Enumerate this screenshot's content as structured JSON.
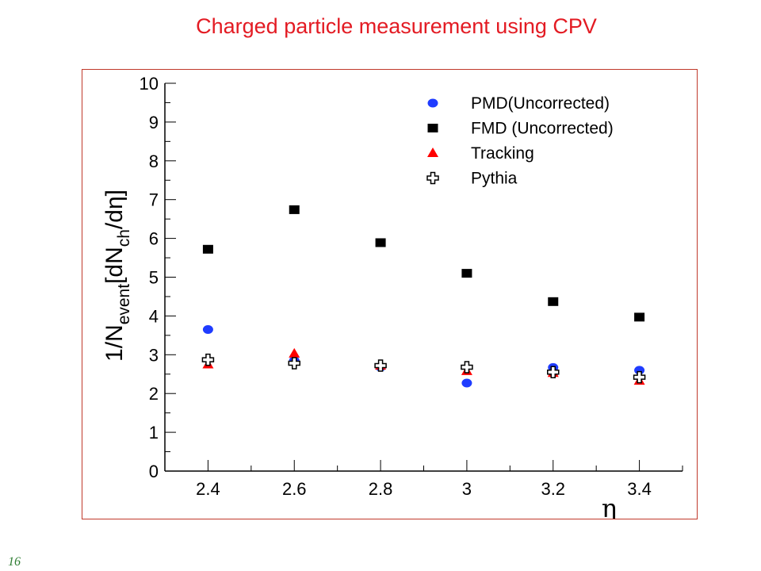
{
  "slide": {
    "title": "Charged particle measurement using CPV",
    "page_number": "16"
  },
  "colors": {
    "title": "#e31b23",
    "frame_border": "#c0392b",
    "pmd": "#1f3cff",
    "fmd": "#000000",
    "tracking": "#ff0000",
    "pythia": "#000000",
    "page_number": "#2e7d32"
  },
  "chart_data": {
    "type": "scatter",
    "title": "",
    "xlabel": "η",
    "ylabel": "1/N_event[dN_ch/dη]",
    "xlim": [
      2.3,
      3.5
    ],
    "ylim": [
      0,
      10
    ],
    "x_ticks": [
      "2.4",
      "2.6",
      "2.8",
      "3",
      "3.2",
      "3.4"
    ],
    "y_ticks": [
      "0",
      "1",
      "2",
      "3",
      "4",
      "5",
      "6",
      "7",
      "8",
      "9",
      "10"
    ],
    "grid": false,
    "legend_position": "top-right",
    "series": [
      {
        "name": "PMD(Uncorrected)",
        "marker": "circle",
        "color": "#1f3cff",
        "x": [
          2.4,
          2.6,
          2.8,
          3.0,
          3.2,
          3.4
        ],
        "y": [
          3.65,
          2.85,
          2.68,
          2.27,
          2.67,
          2.6
        ]
      },
      {
        "name": "FMD (Uncorrected)",
        "marker": "square",
        "color": "#000000",
        "x": [
          2.4,
          2.6,
          2.8,
          3.0,
          3.2,
          3.4
        ],
        "y": [
          5.72,
          6.74,
          5.89,
          5.1,
          4.37,
          3.97
        ]
      },
      {
        "name": "Tracking",
        "marker": "triangle",
        "color": "#ff0000",
        "x": [
          2.4,
          2.6,
          2.8,
          3.0,
          3.2,
          3.4
        ],
        "y": [
          2.75,
          3.03,
          2.72,
          2.58,
          2.53,
          2.33
        ]
      },
      {
        "name": "Pythia",
        "marker": "open-cross",
        "color": "#000000",
        "x": [
          2.4,
          2.6,
          2.8,
          3.0,
          3.2,
          3.4
        ],
        "y": [
          2.87,
          2.78,
          2.72,
          2.68,
          2.55,
          2.42
        ]
      }
    ]
  }
}
